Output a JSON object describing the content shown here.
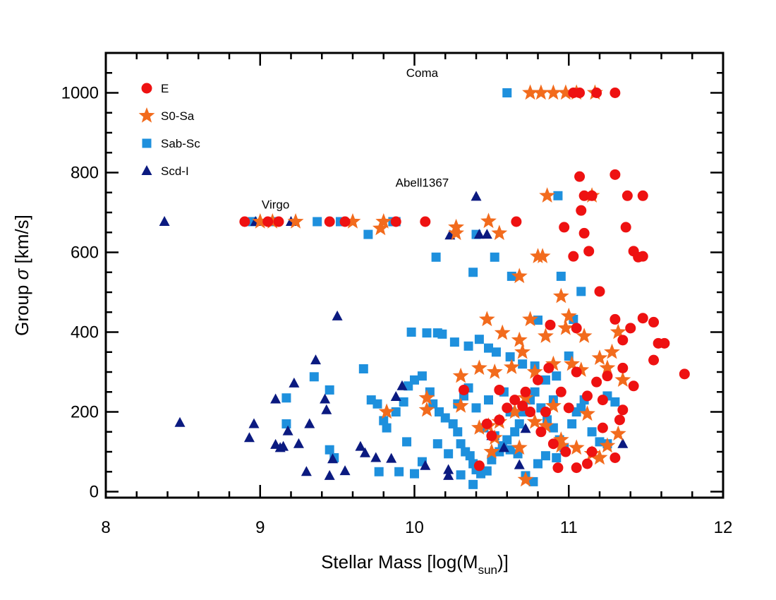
{
  "chart_data": {
    "type": "scatter",
    "x_label": [
      "Stellar Mass [log(M",
      "sun",
      ")]"
    ],
    "y_label": [
      "Group ",
      "σ",
      " [km/s]"
    ],
    "xlim": [
      8,
      12
    ],
    "ylim": [
      -15,
      1100
    ],
    "xticks": [
      8,
      9,
      10,
      11,
      12
    ],
    "yticks": [
      0,
      200,
      400,
      600,
      800,
      1000
    ],
    "xminorticks": [
      8.2,
      8.4,
      8.6,
      8.8,
      9.2,
      9.4,
      9.6,
      9.8,
      10.2,
      10.4,
      10.6,
      10.8,
      11.2,
      11.4,
      11.6,
      11.8
    ],
    "yminorticks": [
      50,
      100,
      150,
      250,
      300,
      350,
      450,
      500,
      550,
      650,
      700,
      750,
      850,
      900,
      950,
      1050
    ],
    "legend": "upper left",
    "annotations": [
      {
        "text": "Coma",
        "x": 10.05,
        "y": 1040
      },
      {
        "text": "Abell1367",
        "x": 10.05,
        "y": 765
      },
      {
        "text": "Virgo",
        "x": 9.1,
        "y": 710
      }
    ],
    "series": [
      {
        "name": "E",
        "marker": "circle",
        "color": "#ee1111",
        "x": [
          11.03,
          11.07,
          11.18,
          11.3,
          8.9,
          9.05,
          9.12,
          9.45,
          9.55,
          9.88,
          10.07,
          10.66,
          11.07,
          11.3,
          11.1,
          11.15,
          11.38,
          11.48,
          11.08,
          10.97,
          11.1,
          11.37,
          11.13,
          11.42,
          11.45,
          11.48,
          11.03,
          11.2,
          10.88,
          11.05,
          11.3,
          11.35,
          11.4,
          11.48,
          11.55,
          11.58,
          11.62,
          11.55,
          11.75,
          11.35,
          11.42,
          11.25,
          11.18,
          11.05,
          11.12,
          10.95,
          10.87,
          10.8,
          10.72,
          10.7,
          10.65,
          10.6,
          10.55,
          10.5,
          10.47,
          10.32,
          10.55,
          10.82,
          10.9,
          10.98,
          11.05,
          11.12,
          11.15,
          11.22,
          11.33,
          11.3,
          11.35,
          11.22,
          10.93,
          10.42,
          10.75,
          11.0,
          10.85
        ],
        "y": [
          1000,
          1000,
          1000,
          1000,
          677,
          677,
          677,
          677,
          677,
          677,
          677,
          677,
          790,
          795,
          742,
          742,
          742,
          742,
          705,
          663,
          648,
          663,
          603,
          603,
          588,
          590,
          590,
          502,
          418,
          410,
          432,
          380,
          410,
          435,
          425,
          372,
          372,
          330,
          295,
          310,
          265,
          290,
          275,
          300,
          240,
          250,
          310,
          280,
          250,
          215,
          230,
          210,
          180,
          140,
          170,
          255,
          255,
          150,
          120,
          100,
          60,
          70,
          100,
          160,
          180,
          85,
          205,
          230,
          60,
          65,
          200,
          210,
          200
        ]
      },
      {
        "name": "S0-Sa",
        "marker": "star",
        "color": "#f26b1d",
        "x": [
          10.75,
          10.82,
          10.9,
          10.98,
          11.05,
          11.17,
          9.0,
          9.08,
          9.23,
          9.6,
          9.78,
          9.8,
          10.27,
          10.27,
          10.48,
          10.55,
          10.68,
          10.8,
          10.83,
          10.86,
          11.15,
          10.95,
          10.47,
          10.57,
          10.68,
          10.75,
          10.85,
          10.98,
          11.0,
          11.1,
          11.32,
          10.63,
          10.7,
          10.78,
          10.9,
          11.02,
          11.08,
          11.2,
          11.25,
          11.28,
          11.35,
          10.42,
          10.52,
          10.3,
          10.08,
          10.08,
          9.82,
          10.3,
          10.42,
          10.48,
          10.52,
          10.55,
          10.65,
          10.72,
          10.78,
          10.85,
          10.95,
          11.05,
          11.15,
          11.2,
          11.32,
          10.72,
          10.68,
          10.5,
          11.25,
          10.9,
          11.12,
          10.95
        ],
        "y": [
          1000,
          1000,
          1000,
          1000,
          1000,
          1000,
          677,
          677,
          677,
          677,
          660,
          677,
          663,
          648,
          678,
          648,
          540,
          590,
          590,
          742,
          742,
          490,
          432,
          398,
          380,
          432,
          390,
          410,
          440,
          390,
          400,
          312,
          350,
          300,
          320,
          320,
          305,
          335,
          310,
          350,
          280,
          310,
          300,
          290,
          205,
          235,
          200,
          215,
          160,
          165,
          135,
          175,
          200,
          235,
          175,
          165,
          130,
          110,
          95,
          85,
          145,
          30,
          110,
          100,
          115,
          215,
          195,
          115
        ]
      },
      {
        "name": "Sab-Sc",
        "marker": "square",
        "color": "#1e90dd",
        "x": [
          10.6,
          8.95,
          9.08,
          9.37,
          9.52,
          9.86,
          9.88,
          10.4,
          10.14,
          10.52,
          10.38,
          10.63,
          10.95,
          10.93,
          11.08,
          11.03,
          10.8,
          9.7,
          9.98,
          10.08,
          10.15,
          10.18,
          10.26,
          10.35,
          10.42,
          10.48,
          10.53,
          10.62,
          10.7,
          10.78,
          10.85,
          10.92,
          11.0,
          9.35,
          9.45,
          9.17,
          9.17,
          9.45,
          9.48,
          9.67,
          9.72,
          9.76,
          9.8,
          9.82,
          9.88,
          9.93,
          9.96,
          10.0,
          10.05,
          10.1,
          10.12,
          10.16,
          10.2,
          10.25,
          10.28,
          10.3,
          10.33,
          10.36,
          10.38,
          10.4,
          10.43,
          10.47,
          10.5,
          10.55,
          10.6,
          10.65,
          10.68,
          10.7,
          10.75,
          10.78,
          10.82,
          10.86,
          10.9,
          10.94,
          10.97,
          11.02,
          11.05,
          11.08,
          11.1,
          11.15,
          11.2,
          11.25,
          10.72,
          10.77,
          10.38,
          10.3,
          9.9,
          9.77,
          9.95,
          10.05,
          10.15,
          10.22,
          10.28,
          10.32,
          10.35,
          10.4,
          10.45,
          10.52,
          10.57,
          10.62,
          10.67,
          10.8,
          10.85,
          10.92,
          11.25,
          11.3,
          10.0,
          10.48,
          10.58,
          10.62,
          10.9
        ],
        "y": [
          1000,
          677,
          677,
          677,
          677,
          677,
          677,
          645,
          588,
          588,
          550,
          540,
          540,
          742,
          502,
          432,
          430,
          645,
          400,
          398,
          398,
          395,
          375,
          365,
          382,
          360,
          350,
          338,
          320,
          315,
          280,
          290,
          340,
          288,
          255,
          235,
          170,
          105,
          85,
          308,
          230,
          220,
          178,
          160,
          200,
          225,
          265,
          280,
          290,
          250,
          220,
          200,
          185,
          170,
          150,
          120,
          100,
          90,
          70,
          55,
          45,
          52,
          80,
          100,
          130,
          150,
          170,
          200,
          230,
          250,
          210,
          180,
          160,
          130,
          110,
          170,
          200,
          210,
          230,
          150,
          125,
          120,
          40,
          25,
          18,
          42,
          50,
          50,
          125,
          75,
          120,
          95,
          220,
          240,
          260,
          210,
          160,
          140,
          115,
          105,
          95,
          70,
          90,
          85,
          240,
          225,
          45,
          230,
          250,
          200,
          230
        ]
      },
      {
        "name": "Scd-I",
        "marker": "triangle",
        "color": "#0b1a80",
        "x": [
          8.38,
          8.48,
          8.93,
          8.96,
          8.97,
          9.1,
          9.1,
          9.13,
          9.15,
          9.18,
          9.2,
          9.22,
          9.25,
          9.3,
          9.32,
          9.36,
          9.42,
          9.43,
          9.45,
          9.47,
          9.5,
          9.55,
          9.65,
          9.68,
          9.75,
          9.85,
          9.88,
          9.92,
          10.07,
          10.22,
          10.22,
          10.23,
          10.4,
          10.42,
          10.47,
          10.68,
          10.72,
          11.35,
          10.58,
          10.5
        ],
        "y": [
          677,
          173,
          135,
          170,
          677,
          232,
          118,
          110,
          113,
          152,
          677,
          272,
          120,
          50,
          170,
          330,
          232,
          205,
          40,
          82,
          440,
          52,
          113,
          97,
          85,
          83,
          238,
          265,
          65,
          40,
          55,
          643,
          740,
          645,
          645,
          67,
          158,
          120,
          110,
          140
        ]
      }
    ]
  }
}
